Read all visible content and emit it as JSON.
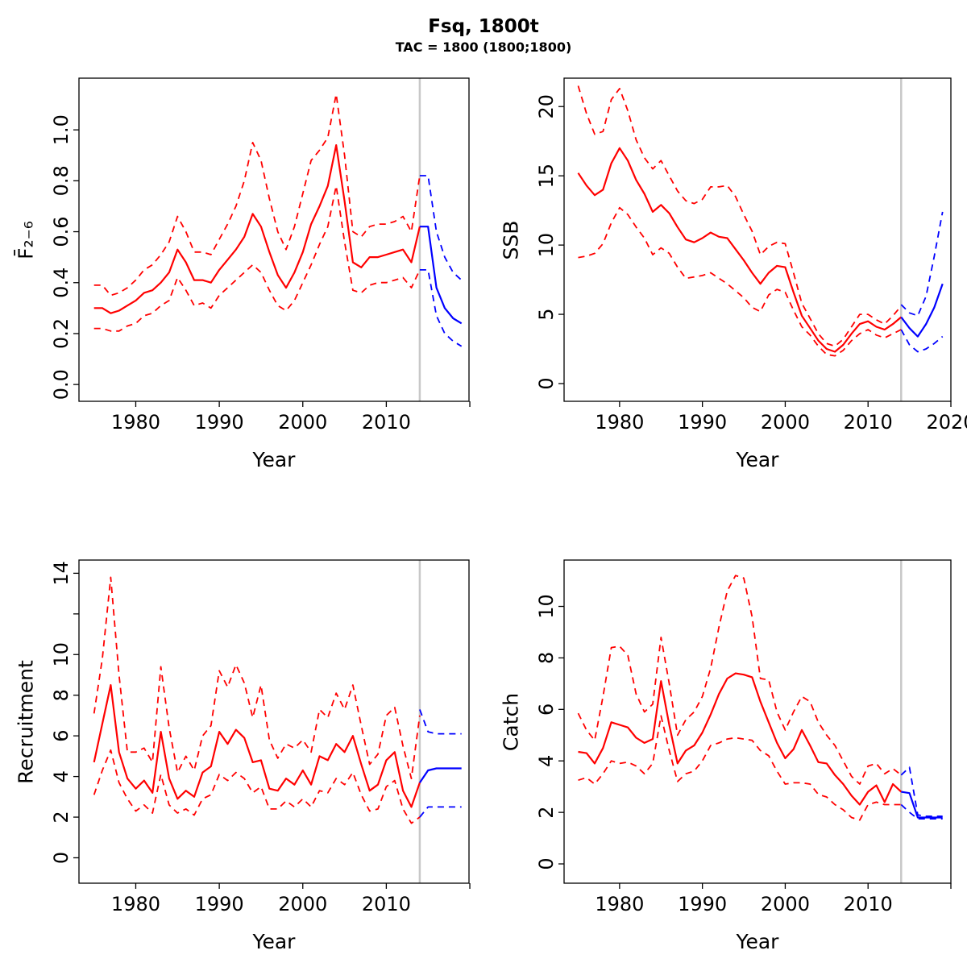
{
  "header": {
    "title": "Fsq, 1800t",
    "subtitle": "TAC = 1800 (1800;1800)"
  },
  "colors": {
    "historical": "#FF0000",
    "forecast": "#0000FF",
    "divider": "#C8C8C8",
    "axis": "#000000"
  },
  "chart_data": [
    {
      "id": "fbar",
      "type": "line",
      "ylabel": "F̄₂₋₆",
      "xlabel": "Year",
      "legend_position": "none",
      "grid": false,
      "xlim": [
        1973.2,
        2019.9
      ],
      "ylim": [
        -0.066,
        1.203
      ],
      "xticks": {
        "values": [
          1980,
          1990,
          2000,
          2010,
          2020
        ],
        "labels": [
          "1980",
          "1990",
          "2000",
          "2010",
          ""
        ]
      },
      "yticks": {
        "values": [
          0,
          0.2,
          0.4,
          0.6,
          0.8,
          1.0
        ],
        "labels": [
          "0.0",
          "0.2",
          "0.4",
          "0.6",
          "0.8",
          "1.0"
        ]
      },
      "forecast_divider_year": 2014,
      "years": [
        1975,
        1976,
        1977,
        1978,
        1979,
        1980,
        1981,
        1982,
        1983,
        1984,
        1985,
        1986,
        1987,
        1988,
        1989,
        1990,
        1991,
        1992,
        1993,
        1994,
        1995,
        1996,
        1997,
        1998,
        1999,
        2000,
        2001,
        2002,
        2003,
        2004,
        2005,
        2006,
        2007,
        2008,
        2009,
        2010,
        2011,
        2012,
        2013,
        2014
      ],
      "forecast_years": [
        2014,
        2015,
        2016,
        2017,
        2018,
        2019
      ],
      "series": {
        "median": [
          0.3,
          0.3,
          0.28,
          0.29,
          0.31,
          0.33,
          0.36,
          0.37,
          0.4,
          0.44,
          0.53,
          0.48,
          0.41,
          0.41,
          0.4,
          0.45,
          0.49,
          0.53,
          0.58,
          0.67,
          0.62,
          0.52,
          0.43,
          0.38,
          0.44,
          0.52,
          0.63,
          0.7,
          0.78,
          0.94,
          0.72,
          0.48,
          0.46,
          0.5,
          0.5,
          0.51,
          0.52,
          0.53,
          0.48,
          0.62
        ],
        "upper": [
          0.39,
          0.39,
          0.35,
          0.36,
          0.38,
          0.41,
          0.45,
          0.47,
          0.51,
          0.56,
          0.66,
          0.6,
          0.52,
          0.52,
          0.51,
          0.57,
          0.63,
          0.7,
          0.8,
          0.95,
          0.88,
          0.73,
          0.6,
          0.53,
          0.62,
          0.75,
          0.88,
          0.92,
          0.97,
          1.14,
          0.9,
          0.6,
          0.58,
          0.62,
          0.63,
          0.63,
          0.64,
          0.66,
          0.6,
          0.82
        ],
        "lower": [
          0.22,
          0.22,
          0.21,
          0.21,
          0.23,
          0.24,
          0.27,
          0.28,
          0.31,
          0.33,
          0.42,
          0.37,
          0.31,
          0.32,
          0.3,
          0.35,
          0.38,
          0.41,
          0.44,
          0.47,
          0.44,
          0.37,
          0.31,
          0.29,
          0.33,
          0.4,
          0.47,
          0.55,
          0.62,
          0.78,
          0.56,
          0.37,
          0.36,
          0.39,
          0.4,
          0.4,
          0.41,
          0.42,
          0.38,
          0.45
        ],
        "forecast_median": [
          0.62,
          0.62,
          0.38,
          0.3,
          0.26,
          0.24
        ],
        "forecast_upper": [
          0.82,
          0.82,
          0.6,
          0.5,
          0.44,
          0.41
        ],
        "forecast_lower": [
          0.45,
          0.45,
          0.27,
          0.2,
          0.17,
          0.15
        ]
      }
    },
    {
      "id": "ssb",
      "type": "line",
      "ylabel": "SSB",
      "xlabel": "Year",
      "legend_position": "none",
      "grid": false,
      "xlim": [
        1973.3,
        2020.0
      ],
      "ylim": [
        -1.28,
        22.05
      ],
      "xticks": {
        "values": [
          1980,
          1990,
          2000,
          2010,
          2020
        ],
        "labels": [
          "1980",
          "1990",
          "2000",
          "2010",
          "2020"
        ]
      },
      "yticks": {
        "values": [
          0,
          5,
          10,
          15,
          20
        ],
        "labels": [
          "0",
          "5",
          "10",
          "15",
          "20"
        ]
      },
      "forecast_divider_year": 2014,
      "years": [
        1975,
        1976,
        1977,
        1978,
        1979,
        1980,
        1981,
        1982,
        1983,
        1984,
        1985,
        1986,
        1987,
        1988,
        1989,
        1990,
        1991,
        1992,
        1993,
        1994,
        1995,
        1996,
        1997,
        1998,
        1999,
        2000,
        2001,
        2002,
        2003,
        2004,
        2005,
        2006,
        2007,
        2008,
        2009,
        2010,
        2011,
        2012,
        2013,
        2014
      ],
      "forecast_years": [
        2014,
        2015,
        2016,
        2017,
        2018,
        2019
      ],
      "series": {
        "median": [
          15.2,
          14.3,
          13.6,
          14.0,
          15.9,
          17.0,
          16.1,
          14.7,
          13.7,
          12.4,
          12.9,
          12.3,
          11.3,
          10.4,
          10.2,
          10.5,
          10.9,
          10.6,
          10.5,
          9.7,
          8.9,
          8.0,
          7.2,
          8.0,
          8.5,
          8.4,
          6.6,
          4.9,
          4.0,
          3.1,
          2.5,
          2.3,
          2.8,
          3.6,
          4.3,
          4.5,
          4.1,
          3.9,
          4.3,
          4.8
        ],
        "upper": [
          21.5,
          19.5,
          18.0,
          18.2,
          20.5,
          21.3,
          19.7,
          17.6,
          16.3,
          15.5,
          16.1,
          15.0,
          13.9,
          13.2,
          13.0,
          13.3,
          14.2,
          14.2,
          14.3,
          13.5,
          12.2,
          11.0,
          9.3,
          9.9,
          10.2,
          10.1,
          8.0,
          5.8,
          4.7,
          3.6,
          2.9,
          2.7,
          3.2,
          4.1,
          5.0,
          5.0,
          4.6,
          4.3,
          4.9,
          5.6
        ],
        "lower": [
          9.1,
          9.2,
          9.4,
          10.1,
          11.6,
          12.7,
          12.2,
          11.3,
          10.5,
          9.3,
          9.8,
          9.4,
          8.4,
          7.6,
          7.7,
          7.8,
          8.0,
          7.6,
          7.2,
          6.7,
          6.2,
          5.5,
          5.2,
          6.4,
          6.8,
          6.6,
          5.3,
          4.1,
          3.5,
          2.7,
          2.1,
          2.0,
          2.4,
          3.1,
          3.6,
          3.9,
          3.5,
          3.3,
          3.6,
          3.9
        ],
        "forecast_median": [
          4.8,
          4.0,
          3.4,
          4.3,
          5.5,
          7.2
        ],
        "forecast_upper": [
          5.7,
          5.1,
          4.9,
          6.3,
          9.2,
          12.4
        ],
        "forecast_lower": [
          3.9,
          2.8,
          2.3,
          2.5,
          2.9,
          3.4
        ]
      }
    },
    {
      "id": "rec",
      "type": "line",
      "ylabel": "Recruitment",
      "xlabel": "Year",
      "legend_position": "none",
      "grid": false,
      "xlim": [
        1973.2,
        2019.9
      ],
      "ylim": [
        -1.25,
        14.65
      ],
      "xticks": {
        "values": [
          1980,
          1990,
          2000,
          2010,
          2020
        ],
        "labels": [
          "1980",
          "1990",
          "2000",
          "2010",
          ""
        ]
      },
      "yticks": {
        "values": [
          0,
          2,
          4,
          6,
          8,
          10,
          12,
          14
        ],
        "labels": [
          "0",
          "2",
          "4",
          "6",
          "8",
          "10",
          "",
          "14"
        ]
      },
      "forecast_divider_year": 2014,
      "years": [
        1975,
        1976,
        1977,
        1978,
        1979,
        1980,
        1981,
        1982,
        1983,
        1984,
        1985,
        1986,
        1987,
        1988,
        1989,
        1990,
        1991,
        1992,
        1993,
        1994,
        1995,
        1996,
        1997,
        1998,
        1999,
        2000,
        2001,
        2002,
        2003,
        2004,
        2005,
        2006,
        2007,
        2008,
        2009,
        2010,
        2011,
        2012,
        2013,
        2014
      ],
      "forecast_years": [
        2014,
        2015,
        2016,
        2017,
        2018,
        2019
      ],
      "series": {
        "median": [
          4.7,
          6.6,
          8.5,
          5.2,
          3.9,
          3.4,
          3.8,
          3.2,
          6.2,
          3.9,
          2.9,
          3.3,
          3.0,
          4.2,
          4.5,
          6.2,
          5.6,
          6.3,
          5.9,
          4.7,
          4.8,
          3.4,
          3.3,
          3.9,
          3.6,
          4.3,
          3.6,
          5.0,
          4.8,
          5.6,
          5.2,
          6.0,
          4.6,
          3.3,
          3.6,
          4.8,
          5.2,
          3.3,
          2.5,
          3.7
        ],
        "upper": [
          7.1,
          9.8,
          13.8,
          9.0,
          5.2,
          5.2,
          5.4,
          4.7,
          9.4,
          6.4,
          4.2,
          5.0,
          4.3,
          6.0,
          6.5,
          9.2,
          8.4,
          9.5,
          8.6,
          6.9,
          8.5,
          5.8,
          4.9,
          5.6,
          5.4,
          5.8,
          5.2,
          7.3,
          6.9,
          8.1,
          7.3,
          8.5,
          6.5,
          4.6,
          5.1,
          7.0,
          7.4,
          5.5,
          3.9,
          7.0
        ],
        "lower": [
          3.1,
          4.3,
          5.3,
          3.7,
          2.9,
          2.3,
          2.6,
          2.2,
          4.1,
          2.6,
          2.2,
          2.4,
          2.1,
          2.9,
          3.1,
          4.1,
          3.8,
          4.2,
          3.9,
          3.2,
          3.5,
          2.4,
          2.4,
          2.8,
          2.5,
          2.9,
          2.5,
          3.3,
          3.2,
          3.9,
          3.6,
          4.2,
          3.1,
          2.3,
          2.4,
          3.5,
          3.8,
          2.4,
          1.7,
          2.0
        ],
        "forecast_median": [
          3.7,
          4.3,
          4.4,
          4.4,
          4.4,
          4.4
        ],
        "forecast_upper": [
          7.3,
          6.2,
          6.1,
          6.1,
          6.1,
          6.1
        ],
        "forecast_lower": [
          2.0,
          2.5,
          2.5,
          2.5,
          2.5,
          2.5
        ]
      }
    },
    {
      "id": "catch",
      "type": "line",
      "ylabel": "Catch",
      "xlabel": "Year",
      "legend_position": "none",
      "grid": false,
      "xlim": [
        1973.3,
        2020.0
      ],
      "ylim": [
        -0.75,
        11.8
      ],
      "xticks": {
        "values": [
          1980,
          1990,
          2000,
          2010,
          2020
        ],
        "labels": [
          "1980",
          "1990",
          "2000",
          "2010",
          ""
        ]
      },
      "yticks": {
        "values": [
          0,
          2,
          4,
          6,
          8,
          10
        ],
        "labels": [
          "0",
          "2",
          "4",
          "6",
          "8",
          "10"
        ]
      },
      "forecast_divider_year": 2014,
      "years": [
        1975,
        1976,
        1977,
        1978,
        1979,
        1980,
        1981,
        1982,
        1983,
        1984,
        1985,
        1986,
        1987,
        1988,
        1989,
        1990,
        1991,
        1992,
        1993,
        1994,
        1995,
        1996,
        1997,
        1998,
        1999,
        2000,
        2001,
        2002,
        2003,
        2004,
        2005,
        2006,
        2007,
        2008,
        2009,
        2010,
        2011,
        2012,
        2013,
        2014
      ],
      "forecast_years": [
        2014,
        2015,
        2016,
        2017,
        2018,
        2019
      ],
      "series": {
        "median": [
          4.35,
          4.3,
          3.9,
          4.5,
          5.5,
          5.4,
          5.3,
          4.9,
          4.7,
          4.85,
          7.1,
          5.4,
          3.9,
          4.4,
          4.6,
          5.1,
          5.8,
          6.6,
          7.2,
          7.4,
          7.35,
          7.25,
          6.3,
          5.5,
          4.7,
          4.1,
          4.45,
          5.2,
          4.6,
          3.95,
          3.9,
          3.45,
          3.1,
          2.65,
          2.3,
          2.8,
          3.05,
          2.4,
          3.1,
          2.8
        ],
        "upper": [
          5.85,
          5.2,
          4.8,
          6.5,
          8.4,
          8.45,
          8.1,
          6.6,
          5.9,
          6.2,
          8.8,
          7.0,
          5.0,
          5.6,
          5.9,
          6.5,
          7.6,
          9.2,
          10.6,
          11.2,
          11.1,
          9.6,
          7.2,
          7.15,
          5.9,
          5.2,
          5.9,
          6.5,
          6.3,
          5.5,
          5.0,
          4.6,
          4.0,
          3.4,
          3.1,
          3.8,
          3.9,
          3.5,
          3.7,
          3.45
        ],
        "lower": [
          3.25,
          3.35,
          3.1,
          3.5,
          4.0,
          3.9,
          3.95,
          3.8,
          3.5,
          3.9,
          5.75,
          4.4,
          3.2,
          3.5,
          3.6,
          4.0,
          4.6,
          4.7,
          4.85,
          4.9,
          4.85,
          4.8,
          4.4,
          4.2,
          3.6,
          3.1,
          3.15,
          3.15,
          3.1,
          2.7,
          2.6,
          2.3,
          2.1,
          1.8,
          1.7,
          2.3,
          2.4,
          2.3,
          2.3,
          2.3
        ],
        "forecast_median": [
          2.8,
          2.75,
          1.8,
          1.8,
          1.8,
          1.8
        ],
        "forecast_upper": [
          3.45,
          3.75,
          1.9,
          1.85,
          1.85,
          1.85
        ],
        "forecast_lower": [
          2.3,
          2.0,
          1.75,
          1.75,
          1.75,
          1.75
        ]
      }
    }
  ]
}
